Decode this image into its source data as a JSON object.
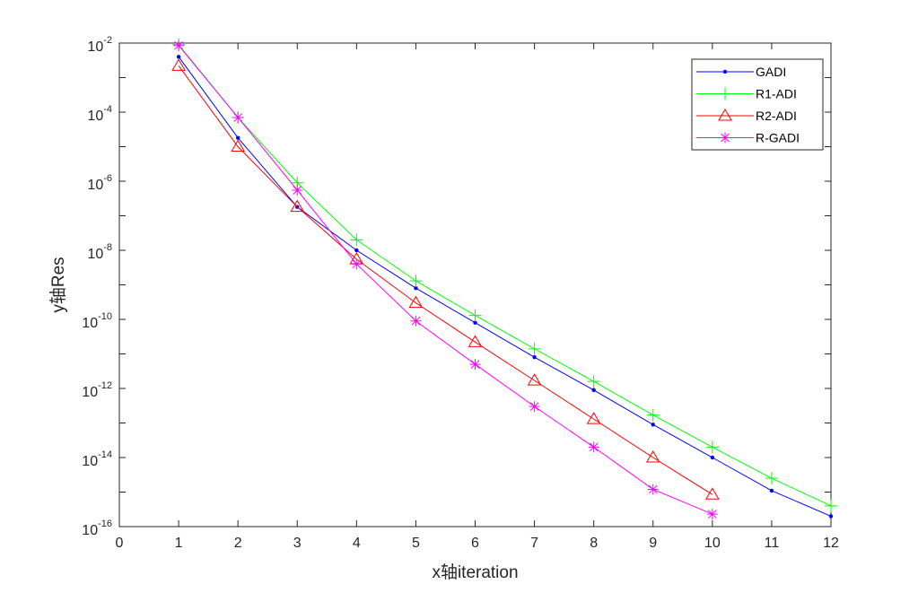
{
  "chart_data": {
    "type": "line",
    "title": "",
    "xlabel": "x轴iteration",
    "ylabel": "y轴Res",
    "xlim": [
      0,
      12
    ],
    "ylim": [
      1e-16,
      0.01
    ],
    "yscale": "log",
    "grid": false,
    "legend_position": "top-right",
    "x_ticks": [
      "0",
      "1",
      "2",
      "3",
      "4",
      "5",
      "6",
      "7",
      "8",
      "9",
      "10",
      "11",
      "12"
    ],
    "y_ticks": [
      {
        "base": "10",
        "exp": "-16",
        "value": 1e-16
      },
      {
        "base": "10",
        "exp": "-14",
        "value": 1e-14
      },
      {
        "base": "10",
        "exp": "-12",
        "value": 1e-12
      },
      {
        "base": "10",
        "exp": "-10",
        "value": 1e-10
      },
      {
        "base": "10",
        "exp": "-8",
        "value": 1e-08
      },
      {
        "base": "10",
        "exp": "-6",
        "value": 1e-06
      },
      {
        "base": "10",
        "exp": "-4",
        "value": 0.0001
      },
      {
        "base": "10",
        "exp": "-2",
        "value": 0.01
      }
    ],
    "series": [
      {
        "name": "GADI",
        "color": "#0000ff",
        "marker": "dot",
        "x": [
          1,
          2,
          3,
          4,
          5,
          6,
          7,
          8,
          9,
          10,
          11,
          12
        ],
        "y": [
          0.004,
          1.8e-05,
          1.8e-07,
          1e-08,
          8e-10,
          8e-11,
          8e-12,
          9e-13,
          9e-14,
          1e-14,
          1.1e-15,
          2e-16
        ]
      },
      {
        "name": "R1-ADI",
        "color": "#00ff00",
        "marker": "plus",
        "x": [
          1,
          2,
          3,
          4,
          5,
          6,
          7,
          8,
          9,
          10,
          11,
          12
        ],
        "y": [
          0.009,
          7e-05,
          9e-07,
          2e-08,
          1.3e-09,
          1.3e-10,
          1.4e-11,
          1.6e-12,
          1.7e-13,
          2e-14,
          2.5e-15,
          4e-16
        ]
      },
      {
        "name": "R2-ADI",
        "color": "#ff0000",
        "marker": "triangle",
        "x": [
          1,
          2,
          3,
          4,
          5,
          6,
          7,
          8,
          9,
          10
        ],
        "y": [
          0.0022,
          1e-05,
          1.8e-07,
          5.5e-09,
          3e-10,
          2.2e-11,
          1.7e-12,
          1.3e-13,
          1e-14,
          8.5e-16
        ]
      },
      {
        "name": "R-GADI",
        "color": "#ff00ff",
        "marker": "star",
        "x": [
          1,
          2,
          3,
          4,
          5,
          6,
          7,
          8,
          9,
          10
        ],
        "y": [
          0.0085,
          7e-05,
          5.5e-07,
          4e-09,
          9e-11,
          5e-12,
          3e-13,
          2e-14,
          1.2e-15,
          2.3e-16
        ]
      }
    ]
  }
}
